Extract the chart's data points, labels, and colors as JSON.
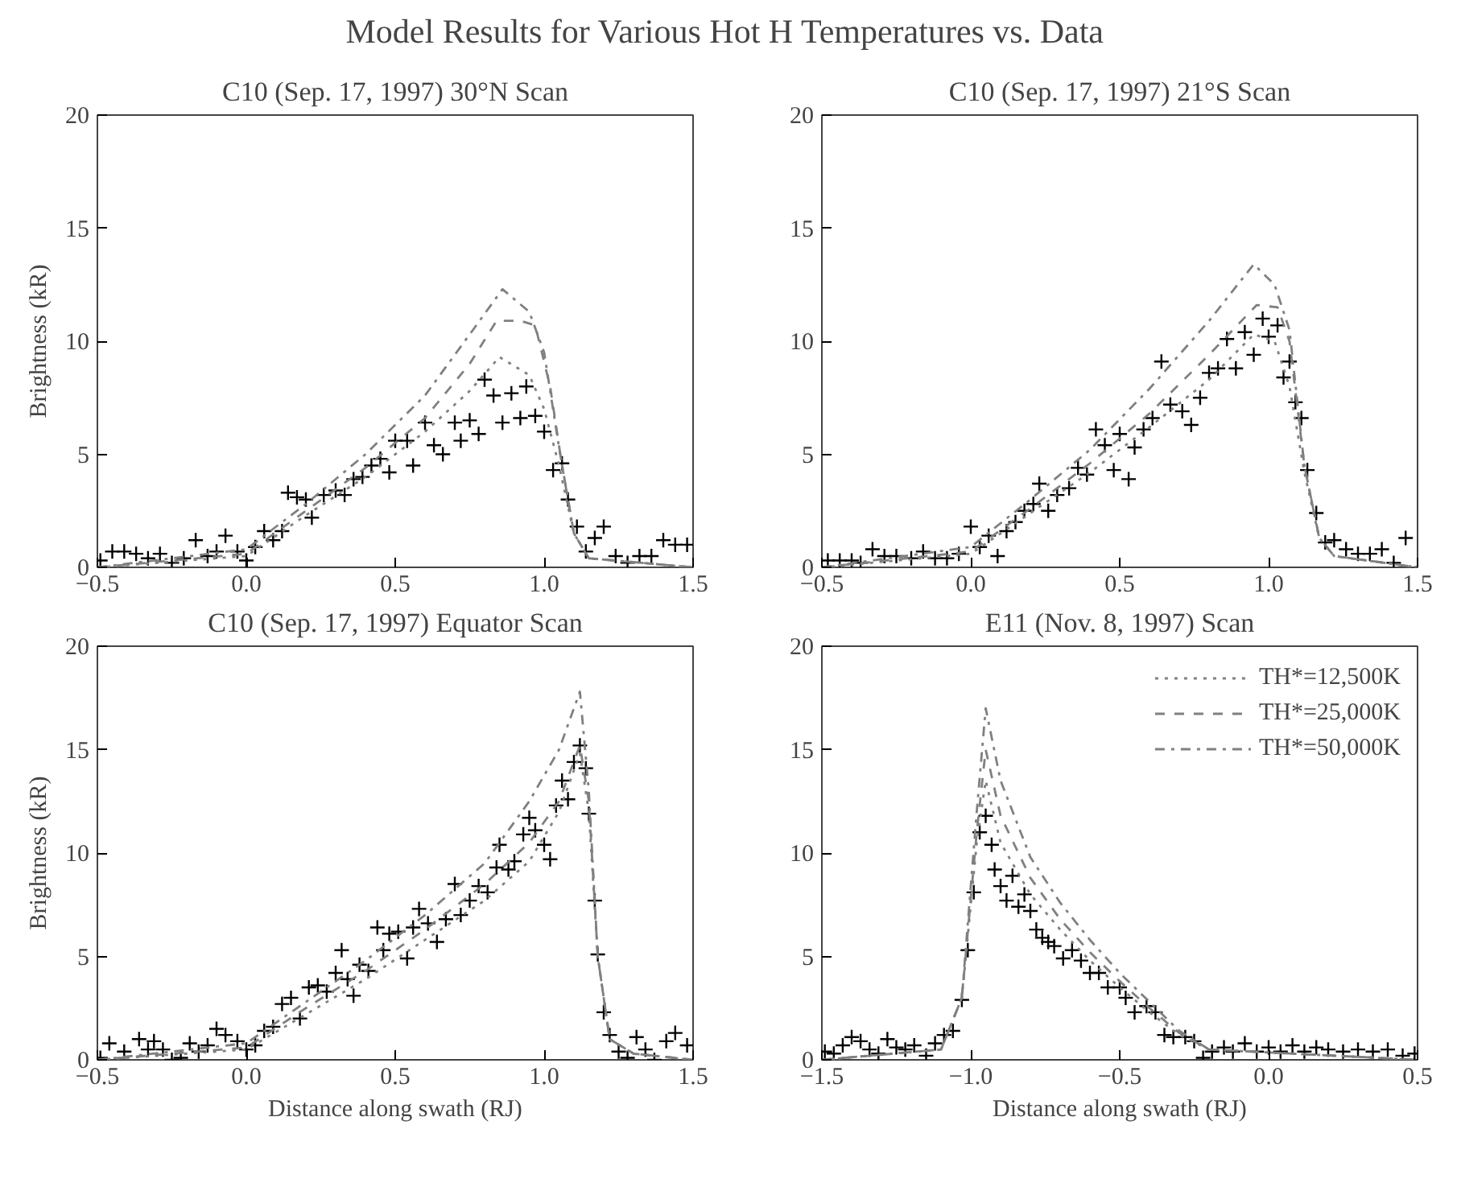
{
  "chart_data": [
    {
      "type": "line",
      "title": "Model Results for Various Hot H Temperatures vs. Data",
      "subtitle": "C10 (Sep. 17, 1997) 30°N Scan",
      "ylabel": "Brightness (kR)",
      "xlim": [
        -0.5,
        1.5
      ],
      "xticks": [
        {
          "value": -0.5,
          "label": "−0.5"
        },
        {
          "value": 0,
          "label": "0.0"
        },
        {
          "value": 0.5,
          "label": "0.5"
        },
        {
          "value": 1,
          "label": "1.0"
        },
        {
          "value": 1.5,
          "label": "1.5"
        }
      ],
      "ylim": [
        0,
        20
      ],
      "yticks": [
        0,
        5,
        10,
        15,
        20
      ],
      "grid": false,
      "legend": false,
      "series": [
        {
          "type": "scatter",
          "marker": "cross",
          "color": "#000000",
          "x": [
            -0.49,
            -0.45,
            -0.41,
            -0.37,
            -0.33,
            -0.29,
            -0.25,
            -0.21,
            -0.17,
            -0.13,
            -0.1,
            -0.07,
            -0.03,
            0.0,
            0.03,
            0.06,
            0.09,
            0.12,
            0.14,
            0.17,
            0.2,
            0.22,
            0.26,
            0.3,
            0.33,
            0.36,
            0.39,
            0.42,
            0.45,
            0.48,
            0.5,
            0.54,
            0.56,
            0.6,
            0.63,
            0.66,
            0.7,
            0.72,
            0.75,
            0.78,
            0.8,
            0.83,
            0.86,
            0.89,
            0.92,
            0.94,
            0.97,
            1.0,
            1.03,
            1.06,
            1.08,
            1.11,
            1.14,
            1.17,
            1.2,
            1.24,
            1.28,
            1.32,
            1.36,
            1.4,
            1.44,
            1.48
          ],
          "values": [
            0.3,
            0.7,
            0.7,
            0.6,
            0.4,
            0.6,
            0.2,
            0.4,
            1.2,
            0.5,
            0.7,
            1.4,
            0.7,
            0.3,
            0.9,
            1.6,
            1.2,
            1.6,
            3.3,
            3.1,
            3.0,
            2.2,
            3.2,
            3.4,
            3.2,
            3.9,
            4.0,
            4.5,
            4.8,
            4.2,
            5.6,
            5.6,
            4.5,
            6.4,
            5.4,
            5.0,
            6.4,
            5.6,
            6.5,
            5.9,
            8.3,
            7.6,
            6.4,
            7.7,
            6.6,
            8.0,
            6.7,
            6.0,
            4.3,
            4.6,
            3.0,
            1.8,
            0.7,
            1.3,
            1.8,
            0.5,
            0.2,
            0.5,
            0.5,
            1.2,
            1.0,
            1.0
          ]
        },
        {
          "type": "line",
          "marker": "none",
          "line_style": "dotted",
          "color": "#808080",
          "x": [
            -0.5,
            0,
            0.2,
            0.4,
            0.6,
            0.75,
            0.85,
            0.95,
            1.0,
            1.05,
            1.1,
            1.15,
            1.5
          ],
          "values": [
            0,
            0.5,
            2.3,
            4.0,
            6.0,
            7.8,
            9.3,
            8.5,
            7.0,
            4.5,
            1.5,
            0.4,
            0
          ]
        },
        {
          "type": "line",
          "marker": "none",
          "line_style": "dashed",
          "color": "#808080",
          "x": [
            -0.5,
            0,
            0.2,
            0.4,
            0.6,
            0.75,
            0.84,
            0.92,
            0.97,
            1.02,
            1.06,
            1.1,
            1.15,
            1.5
          ],
          "values": [
            0,
            0.6,
            2.5,
            4.4,
            6.6,
            9.0,
            10.9,
            10.9,
            10.7,
            8.0,
            4.5,
            1.5,
            0.4,
            0
          ]
        },
        {
          "type": "line",
          "marker": "none",
          "line_style": "dashdot",
          "color": "#808080",
          "x": [
            -0.5,
            0,
            0.2,
            0.4,
            0.6,
            0.75,
            0.86,
            0.95,
            1.0,
            1.05,
            1.1,
            1.15,
            1.5
          ],
          "values": [
            0,
            0.8,
            2.8,
            5.0,
            7.6,
            10.3,
            12.3,
            11.3,
            9.5,
            5.3,
            1.5,
            0.4,
            0
          ]
        }
      ]
    },
    {
      "type": "line",
      "subtitle": "C10 (Sep. 17, 1997) 21°S Scan",
      "xlim": [
        -0.5,
        1.5
      ],
      "xticks": [
        {
          "value": -0.5,
          "label": "−0.5"
        },
        {
          "value": 0,
          "label": "0.0"
        },
        {
          "value": 0.5,
          "label": "0.5"
        },
        {
          "value": 1,
          "label": "1.0"
        },
        {
          "value": 1.5,
          "label": "1.5"
        }
      ],
      "ylim": [
        0,
        20
      ],
      "yticks": [
        0,
        5,
        10,
        15,
        20
      ],
      "grid": false,
      "legend": false,
      "series": [
        {
          "type": "scatter",
          "marker": "cross",
          "color": "#000000",
          "x": [
            -0.48,
            -0.44,
            -0.4,
            -0.37,
            -0.33,
            -0.29,
            -0.25,
            -0.2,
            -0.16,
            -0.12,
            -0.08,
            -0.04,
            0.0,
            0.03,
            0.06,
            0.09,
            0.12,
            0.15,
            0.18,
            0.21,
            0.23,
            0.26,
            0.29,
            0.33,
            0.36,
            0.39,
            0.42,
            0.45,
            0.48,
            0.5,
            0.53,
            0.55,
            0.58,
            0.61,
            0.64,
            0.67,
            0.71,
            0.74,
            0.77,
            0.8,
            0.83,
            0.86,
            0.89,
            0.92,
            0.95,
            0.98,
            1.0,
            1.03,
            1.05,
            1.07,
            1.09,
            1.11,
            1.13,
            1.16,
            1.19,
            1.22,
            1.26,
            1.3,
            1.34,
            1.38,
            1.42,
            1.46
          ],
          "values": [
            0.3,
            0.3,
            0.3,
            0.2,
            0.8,
            0.5,
            0.5,
            0.4,
            0.7,
            0.4,
            0.4,
            0.6,
            1.8,
            0.9,
            1.4,
            0.5,
            1.6,
            2.0,
            2.5,
            2.8,
            3.7,
            2.5,
            3.2,
            3.5,
            4.4,
            4.1,
            6.1,
            5.4,
            4.3,
            5.9,
            3.9,
            5.3,
            6.1,
            6.6,
            9.1,
            7.2,
            6.9,
            6.3,
            7.5,
            8.6,
            8.8,
            10.1,
            8.8,
            10.4,
            9.4,
            11.0,
            10.2,
            10.7,
            8.4,
            9.1,
            7.3,
            6.6,
            4.3,
            2.4,
            1.1,
            1.2,
            0.8,
            0.6,
            0.6,
            0.8,
            0.2,
            1.3
          ]
        },
        {
          "type": "line",
          "marker": "none",
          "line_style": "dotted",
          "color": "#808080",
          "x": [
            -0.5,
            0,
            0.2,
            0.4,
            0.6,
            0.8,
            0.95,
            1.02,
            1.07,
            1.12,
            1.17,
            1.22,
            1.5
          ],
          "values": [
            0,
            0.6,
            2.4,
            4.2,
            6.2,
            8.3,
            10.3,
            10.0,
            8.0,
            4.2,
            1.3,
            0.5,
            0
          ]
        },
        {
          "type": "line",
          "marker": "none",
          "line_style": "dashed",
          "color": "#808080",
          "x": [
            -0.5,
            0,
            0.2,
            0.4,
            0.6,
            0.8,
            0.96,
            1.03,
            1.07,
            1.12,
            1.17,
            1.22,
            1.5
          ],
          "values": [
            0,
            0.7,
            2.6,
            4.6,
            6.8,
            9.4,
            11.6,
            11.5,
            10.0,
            4.5,
            1.3,
            0.5,
            0
          ]
        },
        {
          "type": "line",
          "marker": "none",
          "line_style": "dashdot",
          "color": "#808080",
          "x": [
            -0.5,
            0,
            0.2,
            0.4,
            0.6,
            0.8,
            0.95,
            1.02,
            1.07,
            1.12,
            1.17,
            1.22,
            1.5
          ],
          "values": [
            0,
            0.9,
            3.0,
            5.2,
            7.9,
            10.9,
            13.4,
            12.5,
            10.5,
            4.5,
            1.3,
            0.5,
            0
          ]
        }
      ]
    },
    {
      "type": "line",
      "subtitle": "C10 (Sep. 17, 1997) Equator Scan",
      "xlabel": "Distance along swath (RJ)",
      "ylabel": "Brightness (kR)",
      "xlim": [
        -0.5,
        1.5
      ],
      "xticks": [
        {
          "value": -0.5,
          "label": "−0.5"
        },
        {
          "value": 0,
          "label": "0.0"
        },
        {
          "value": 0.5,
          "label": "0.5"
        },
        {
          "value": 1,
          "label": "1.0"
        },
        {
          "value": 1.5,
          "label": "1.5"
        }
      ],
      "ylim": [
        0,
        20
      ],
      "yticks": [
        0,
        5,
        10,
        15,
        20
      ],
      "grid": false,
      "legend": false,
      "series": [
        {
          "type": "scatter",
          "marker": "cross",
          "color": "#000000",
          "x": [
            -0.49,
            -0.46,
            -0.41,
            -0.36,
            -0.33,
            -0.31,
            -0.28,
            -0.25,
            -0.22,
            -0.19,
            -0.16,
            -0.13,
            -0.1,
            -0.07,
            -0.03,
            0.0,
            0.03,
            0.06,
            0.09,
            0.12,
            0.15,
            0.18,
            0.21,
            0.24,
            0.27,
            0.3,
            0.32,
            0.34,
            0.36,
            0.38,
            0.41,
            0.44,
            0.46,
            0.48,
            0.51,
            0.54,
            0.56,
            0.58,
            0.61,
            0.64,
            0.67,
            0.7,
            0.72,
            0.75,
            0.78,
            0.81,
            0.84,
            0.85,
            0.88,
            0.9,
            0.93,
            0.95,
            0.97,
            1.0,
            1.02,
            1.04,
            1.06,
            1.08,
            1.1,
            1.12,
            1.14,
            1.15,
            1.17,
            1.18,
            1.2,
            1.22,
            1.25,
            1.28,
            1.31,
            1.34,
            1.37,
            1.41,
            1.44,
            1.48
          ],
          "values": [
            0.1,
            0.8,
            0.4,
            1.0,
            0.5,
            0.9,
            0.5,
            0.0,
            0.1,
            0.8,
            0.4,
            0.7,
            1.5,
            1.2,
            0.9,
            0.5,
            0.7,
            1.4,
            1.6,
            2.7,
            3.0,
            2.0,
            3.5,
            3.6,
            3.3,
            4.2,
            5.3,
            3.9,
            3.1,
            4.6,
            4.3,
            6.4,
            5.3,
            6.1,
            6.2,
            4.9,
            6.4,
            7.3,
            6.6,
            5.7,
            6.8,
            8.5,
            7.0,
            7.7,
            8.4,
            8.1,
            9.3,
            10.4,
            9.2,
            9.6,
            10.9,
            11.7,
            11.1,
            10.4,
            9.7,
            12.3,
            13.5,
            12.6,
            14.4,
            15.2,
            14.1,
            11.9,
            7.7,
            5.1,
            2.3,
            1.2,
            0.4,
            0.1,
            1.1,
            0.5,
            0.0,
            0.9,
            1.3,
            0.7
          ]
        },
        {
          "type": "line",
          "marker": "none",
          "line_style": "dotted",
          "color": "#808080",
          "x": [
            -0.5,
            0,
            0.2,
            0.4,
            0.6,
            0.8,
            0.95,
            1.05,
            1.12,
            1.15,
            1.18,
            1.22,
            1.3,
            1.5
          ],
          "values": [
            0,
            0.5,
            2.2,
            3.9,
            5.8,
            7.7,
            9.6,
            12.0,
            14.8,
            12.0,
            5.0,
            1.0,
            0.3,
            0
          ]
        },
        {
          "type": "line",
          "marker": "none",
          "line_style": "dashed",
          "color": "#808080",
          "x": [
            -0.5,
            0,
            0.2,
            0.4,
            0.6,
            0.8,
            0.95,
            1.05,
            1.12,
            1.15,
            1.18,
            1.22,
            1.3,
            1.5
          ],
          "values": [
            0,
            0.6,
            2.5,
            4.3,
            6.3,
            8.5,
            10.5,
            12.5,
            15.2,
            12.5,
            5.0,
            1.0,
            0.3,
            0
          ]
        },
        {
          "type": "line",
          "marker": "none",
          "line_style": "dashdot",
          "color": "#808080",
          "x": [
            -0.5,
            0,
            0.2,
            0.4,
            0.6,
            0.8,
            0.95,
            1.05,
            1.12,
            1.15,
            1.18,
            1.22,
            1.3,
            1.5
          ],
          "values": [
            0,
            0.8,
            2.8,
            4.8,
            7.0,
            9.5,
            12.5,
            15.0,
            17.8,
            13.0,
            5.0,
            1.0,
            0.3,
            0
          ]
        }
      ]
    },
    {
      "type": "line",
      "subtitle": "E11 (Nov. 8, 1997) Scan",
      "xlabel": "Distance along swath (RJ)",
      "xlim": [
        -1.5,
        0.5
      ],
      "xticks": [
        {
          "value": -1.5,
          "label": "−1.5"
        },
        {
          "value": -1,
          "label": "−1.0"
        },
        {
          "value": -0.5,
          "label": "−0.5"
        },
        {
          "value": 0,
          "label": "0.0"
        },
        {
          "value": 0.5,
          "label": "0.5"
        }
      ],
      "ylim": [
        0,
        20
      ],
      "yticks": [
        0,
        5,
        10,
        15,
        20
      ],
      "grid": false,
      "legend": "top right",
      "series": [
        {
          "type": "scatter",
          "marker": "cross",
          "color": "#000000",
          "x": [
            -1.49,
            -1.46,
            -1.43,
            -1.4,
            -1.37,
            -1.34,
            -1.31,
            -1.28,
            -1.25,
            -1.22,
            -1.19,
            -1.15,
            -1.12,
            -1.09,
            -1.06,
            -1.03,
            -1.01,
            -0.99,
            -0.97,
            -0.95,
            -0.93,
            -0.92,
            -0.9,
            -0.88,
            -0.86,
            -0.84,
            -0.82,
            -0.8,
            -0.78,
            -0.76,
            -0.74,
            -0.72,
            -0.69,
            -0.66,
            -0.63,
            -0.6,
            -0.57,
            -0.54,
            -0.5,
            -0.48,
            -0.45,
            -0.41,
            -0.38,
            -0.35,
            -0.32,
            -0.28,
            -0.25,
            -0.22,
            -0.19,
            -0.15,
            -0.12,
            -0.08,
            -0.04,
            0.0,
            0.04,
            0.08,
            0.12,
            0.16,
            0.2,
            0.25,
            0.3,
            0.35,
            0.4,
            0.45,
            0.49
          ],
          "values": [
            0.4,
            0.3,
            0.7,
            1.1,
            0.9,
            0.5,
            0.3,
            1.0,
            0.6,
            0.5,
            0.7,
            0.2,
            0.8,
            1.2,
            1.4,
            2.9,
            5.3,
            8.1,
            11.0,
            11.8,
            10.4,
            9.2,
            8.4,
            7.7,
            8.9,
            7.4,
            8.0,
            7.2,
            6.3,
            5.9,
            5.7,
            5.5,
            4.9,
            5.3,
            4.8,
            4.2,
            4.2,
            3.5,
            3.5,
            3.0,
            2.3,
            2.6,
            2.3,
            1.2,
            1.1,
            1.1,
            0.9,
            0.1,
            0.4,
            0.6,
            0.4,
            0.8,
            0.4,
            0.6,
            0.4,
            0.7,
            0.4,
            0.6,
            0.5,
            0.4,
            0.5,
            0.4,
            0.5,
            0.2,
            0.3
          ]
        },
        {
          "type": "line",
          "name": "TH*=12,500K",
          "marker": "none",
          "line_style": "dotted",
          "color": "#808080",
          "x": [
            -1.5,
            -1.1,
            -1.03,
            -0.98,
            -0.95,
            -0.9,
            -0.8,
            -0.7,
            -0.6,
            -0.5,
            -0.4,
            -0.3,
            -0.2,
            0.5
          ],
          "values": [
            0,
            0.5,
            3.0,
            10.5,
            13.5,
            10.5,
            8.0,
            6.3,
            4.8,
            3.5,
            2.3,
            1.2,
            0.5,
            0
          ]
        },
        {
          "type": "line",
          "name": "TH*=25,000K",
          "marker": "none",
          "line_style": "dashed",
          "color": "#808080",
          "x": [
            -1.5,
            -1.1,
            -1.03,
            -0.98,
            -0.95,
            -0.9,
            -0.8,
            -0.7,
            -0.6,
            -0.5,
            -0.4,
            -0.3,
            -0.2,
            0.5
          ],
          "values": [
            0,
            0.5,
            3.0,
            11.0,
            15.0,
            11.8,
            8.8,
            6.8,
            5.2,
            3.8,
            2.5,
            1.3,
            0.5,
            0
          ]
        },
        {
          "type": "line",
          "name": "TH*=50,000K",
          "marker": "none",
          "line_style": "dashdot",
          "color": "#808080",
          "x": [
            -1.5,
            -1.1,
            -1.03,
            -0.98,
            -0.95,
            -0.9,
            -0.8,
            -0.7,
            -0.6,
            -0.5,
            -0.4,
            -0.3,
            -0.2,
            0.5
          ],
          "values": [
            0,
            0.5,
            3.0,
            12.0,
            17.0,
            13.5,
            9.8,
            7.6,
            5.8,
            4.2,
            2.8,
            1.4,
            0.5,
            0
          ]
        }
      ]
    }
  ]
}
